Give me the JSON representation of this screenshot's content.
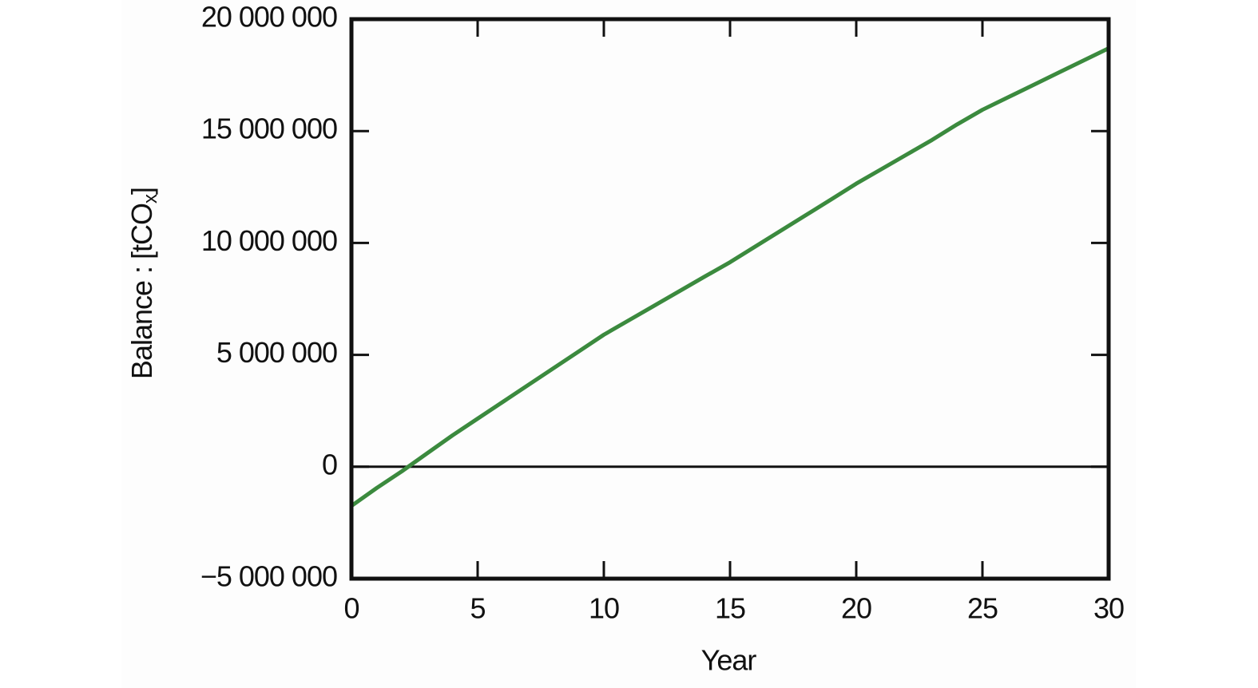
{
  "chart_data": {
    "type": "line",
    "xlabel": "Year",
    "ylabel": {
      "main": "Balance : [tCO",
      "sub": "x",
      "end": "]"
    },
    "x": [
      0,
      1,
      2,
      3,
      4,
      5,
      6,
      7,
      8,
      9,
      10,
      11,
      12,
      13,
      14,
      15,
      16,
      17,
      18,
      19,
      20,
      21,
      22,
      23,
      24,
      25,
      26,
      27,
      28,
      29,
      30
    ],
    "series": [
      {
        "color": "#3b8a3e",
        "values": [
          -1750000,
          -950000,
          -200000,
          600000,
          1400000,
          2150000,
          2900000,
          3650000,
          4400000,
          5150000,
          5900000,
          6550000,
          7200000,
          7850000,
          8500000,
          9140000,
          9840000,
          10540000,
          11240000,
          11940000,
          12650000,
          13300000,
          13950000,
          14600000,
          15300000,
          15950000,
          16500000,
          17050000,
          17600000,
          18150000,
          18700000
        ]
      }
    ],
    "xlim": [
      0,
      30
    ],
    "xticks": [
      0,
      5,
      10,
      15,
      20,
      25,
      30
    ],
    "ylim": [
      -5000000,
      20000000
    ],
    "yticks": [
      {
        "value": -5000000,
        "label": "−5 000 000"
      },
      0,
      {
        "value": 5000000,
        "label": "5 000 000"
      },
      {
        "value": 10000000,
        "label": "10 000 000"
      },
      {
        "value": 15000000,
        "label": "15 000 000"
      },
      {
        "value": 20000000,
        "label": "20 000 000"
      }
    ],
    "zero_line": true,
    "grid": false
  }
}
